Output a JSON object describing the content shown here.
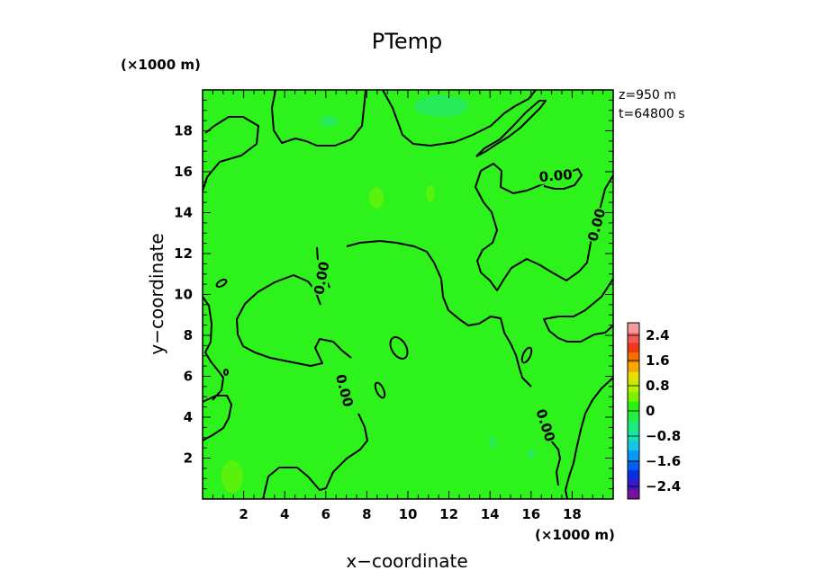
{
  "chart_data": {
    "type": "contour",
    "title": "PTemp",
    "xlabel": "x−coordinate",
    "ylabel": "y−coordinate",
    "x_unit": "(×1000 m)",
    "y_unit": "(×1000 m)",
    "xlim": [
      0,
      20
    ],
    "ylim": [
      0,
      20
    ],
    "xticks": [
      2,
      4,
      6,
      8,
      10,
      12,
      14,
      16,
      18
    ],
    "yticks": [
      2,
      4,
      6,
      8,
      10,
      12,
      14,
      16,
      18
    ],
    "annotations": [
      "z=950 m",
      "t=64800 s"
    ],
    "contour_levels": [
      0.0
    ],
    "contour_labels": [
      {
        "text": "0.00",
        "x": 17.2,
        "y": 15.8,
        "rotate": -5
      },
      {
        "text": "0.00",
        "x": 19.2,
        "y": 13.4,
        "rotate": -75
      },
      {
        "text": "0.00",
        "x": 5.8,
        "y": 10.8,
        "rotate": -80
      },
      {
        "text": "0.00",
        "x": 6.9,
        "y": 5.3,
        "rotate": 75
      },
      {
        "text": "0.00",
        "x": 16.7,
        "y": 3.6,
        "rotate": 72
      }
    ],
    "colorbar": {
      "ticks": [
        "2.4",
        "1.6",
        "0.8",
        "0",
        "−0.8",
        "−1.6",
        "−2.4"
      ],
      "values": [
        2.4,
        1.6,
        0.8,
        0,
        -0.8,
        -1.6,
        -2.4
      ],
      "range": [
        -2.8,
        2.8
      ],
      "colors": [
        "#7a0fa0",
        "#3a18c8",
        "#0a2ee0",
        "#0060f0",
        "#0a98f2",
        "#12c8e6",
        "#18e2b0",
        "#1aec7a",
        "#22ef3e",
        "#2af10e",
        "#7cf200",
        "#b8f000",
        "#e4e000",
        "#f4a800",
        "#f67000",
        "#f03818",
        "#f05a5a",
        "#f49a9a"
      ]
    },
    "background_color": "#2ef21c",
    "contour_color": "#000000"
  }
}
